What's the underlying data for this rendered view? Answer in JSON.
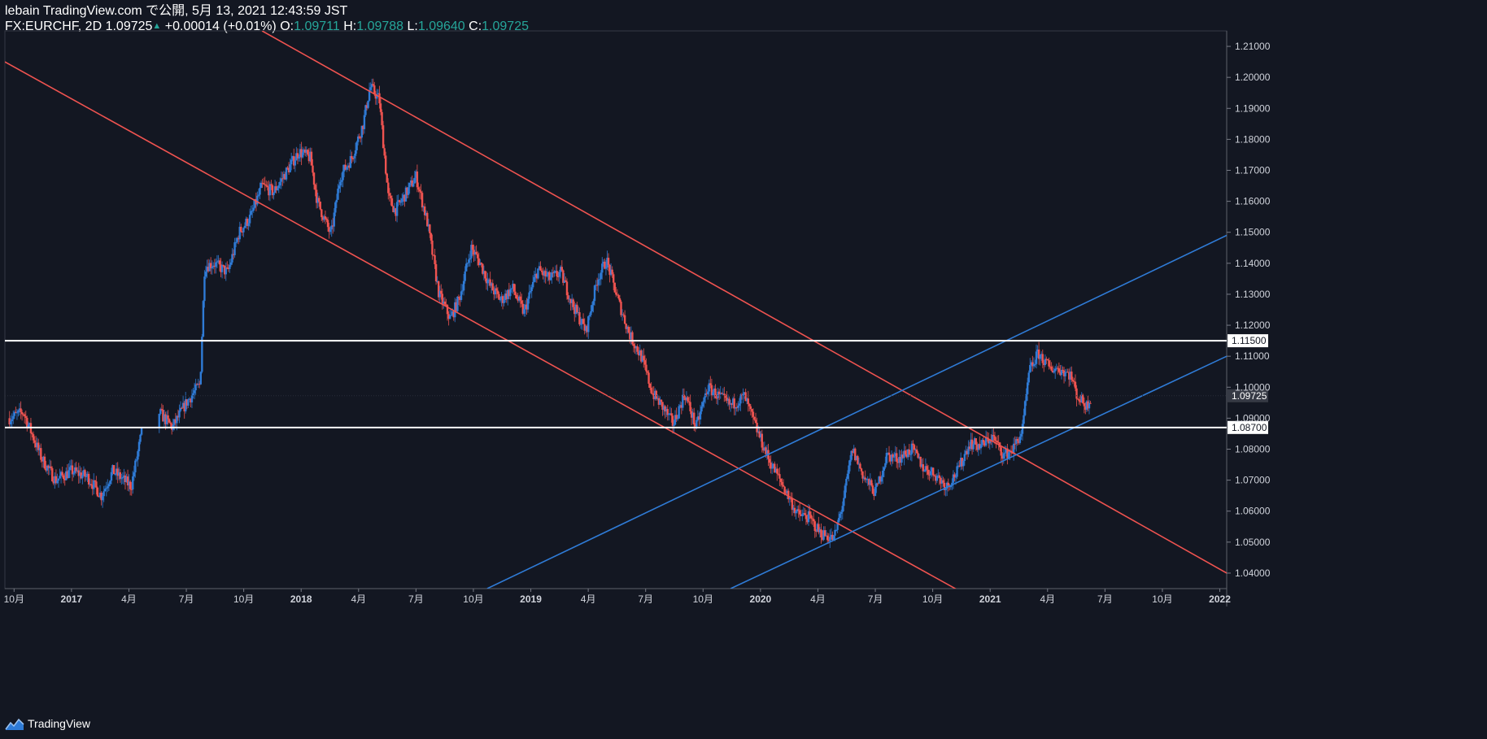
{
  "header": {
    "publisher_line": "lebain TradingView.com で公開, 5月 13, 2021 12:43:59 JST",
    "symbol": "FX:EURCHF, 2D",
    "price": "1.09725",
    "change": "+0.00014 (+0.01%)",
    "o_label": "O:",
    "o_value": "1.09711",
    "h_label": "H:",
    "h_value": "1.09788",
    "l_label": "L:",
    "l_value": "1.09640",
    "c_label": "C:",
    "c_value": "1.09725"
  },
  "footer": {
    "brand": "TradingView"
  },
  "colors": {
    "background": "#131722",
    "up": "#2f7bd6",
    "down": "#ef5350",
    "up_text": "#26a69a",
    "channel_down": "#ef5350",
    "channel_up": "#2f7bd6",
    "level": "#ffffff"
  },
  "chart_data": {
    "type": "candlestick",
    "symbol": "FX:EURCHF",
    "timeframe": "2D",
    "x_ticks": [
      {
        "t": 2016.75,
        "label": "10月"
      },
      {
        "t": 2017.0,
        "label": "2017"
      },
      {
        "t": 2017.25,
        "label": "4月"
      },
      {
        "t": 2017.5,
        "label": "7月"
      },
      {
        "t": 2017.75,
        "label": "10月"
      },
      {
        "t": 2018.0,
        "label": "2018"
      },
      {
        "t": 2018.25,
        "label": "4月"
      },
      {
        "t": 2018.5,
        "label": "7月"
      },
      {
        "t": 2018.75,
        "label": "10月"
      },
      {
        "t": 2019.0,
        "label": "2019"
      },
      {
        "t": 2019.25,
        "label": "4月"
      },
      {
        "t": 2019.5,
        "label": "7月"
      },
      {
        "t": 2019.75,
        "label": "10月"
      },
      {
        "t": 2020.0,
        "label": "2020"
      },
      {
        "t": 2020.25,
        "label": "4月"
      },
      {
        "t": 2020.5,
        "label": "7月"
      },
      {
        "t": 2020.75,
        "label": "10月"
      },
      {
        "t": 2021.0,
        "label": "2021"
      },
      {
        "t": 2021.25,
        "label": "4月"
      },
      {
        "t": 2021.5,
        "label": "7月"
      },
      {
        "t": 2021.75,
        "label": "10月"
      },
      {
        "t": 2022.0,
        "label": "2022"
      }
    ],
    "y_ticks": [
      1.04,
      1.05,
      1.06,
      1.07,
      1.08,
      1.09,
      1.1,
      1.11,
      1.12,
      1.13,
      1.14,
      1.15,
      1.16,
      1.17,
      1.18,
      1.19,
      1.2,
      1.21
    ],
    "y_tick_labels": [
      "1.04000",
      "1.05000",
      "1.06000",
      "1.07000",
      "1.08000",
      "1.09000",
      "1.10000",
      "1.11000",
      "1.12000",
      "1.13000",
      "1.14000",
      "1.15000",
      "1.16000",
      "1.17000",
      "1.18000",
      "1.19000",
      "1.20000",
      "1.21000"
    ],
    "ylim": [
      1.035,
      1.215
    ],
    "xlim": [
      2016.71,
      2022.03
    ],
    "price_path": [
      [
        2016.73,
        1.09
      ],
      [
        2016.79,
        1.092
      ],
      [
        2016.87,
        1.077
      ],
      [
        2016.93,
        1.07
      ],
      [
        2017.0,
        1.073
      ],
      [
        2017.07,
        1.071
      ],
      [
        2017.13,
        1.065
      ],
      [
        2017.18,
        1.073
      ],
      [
        2017.26,
        1.068
      ],
      [
        2017.31,
        1.087
      ],
      [
        2017.38,
        1.092
      ],
      [
        2017.44,
        1.087
      ],
      [
        2017.5,
        1.095
      ],
      [
        2017.56,
        1.101
      ],
      [
        2017.58,
        1.139
      ],
      [
        2017.62,
        1.14
      ],
      [
        2017.68,
        1.137
      ],
      [
        2017.73,
        1.15
      ],
      [
        2017.78,
        1.155
      ],
      [
        2017.83,
        1.165
      ],
      [
        2017.88,
        1.163
      ],
      [
        2017.94,
        1.17
      ],
      [
        2017.99,
        1.176
      ],
      [
        2018.04,
        1.174
      ],
      [
        2018.07,
        1.16
      ],
      [
        2018.13,
        1.149
      ],
      [
        2018.17,
        1.168
      ],
      [
        2018.22,
        1.174
      ],
      [
        2018.27,
        1.185
      ],
      [
        2018.3,
        1.197
      ],
      [
        2018.34,
        1.193
      ],
      [
        2018.38,
        1.161
      ],
      [
        2018.41,
        1.157
      ],
      [
        2018.46,
        1.163
      ],
      [
        2018.5,
        1.168
      ],
      [
        2018.55,
        1.153
      ],
      [
        2018.6,
        1.13
      ],
      [
        2018.65,
        1.122
      ],
      [
        2018.69,
        1.129
      ],
      [
        2018.74,
        1.145
      ],
      [
        2018.78,
        1.14
      ],
      [
        2018.82,
        1.133
      ],
      [
        2018.87,
        1.128
      ],
      [
        2018.92,
        1.132
      ],
      [
        2018.97,
        1.124
      ],
      [
        2019.03,
        1.138
      ],
      [
        2019.08,
        1.135
      ],
      [
        2019.13,
        1.137
      ],
      [
        2019.18,
        1.127
      ],
      [
        2019.24,
        1.118
      ],
      [
        2019.29,
        1.135
      ],
      [
        2019.33,
        1.141
      ],
      [
        2019.38,
        1.128
      ],
      [
        2019.43,
        1.117
      ],
      [
        2019.48,
        1.11
      ],
      [
        2019.53,
        1.098
      ],
      [
        2019.58,
        1.093
      ],
      [
        2019.62,
        1.088
      ],
      [
        2019.67,
        1.098
      ],
      [
        2019.72,
        1.087
      ],
      [
        2019.77,
        1.1
      ],
      [
        2019.82,
        1.097
      ],
      [
        2019.87,
        1.094
      ],
      [
        2019.93,
        1.097
      ],
      [
        2019.98,
        1.087
      ],
      [
        2020.04,
        1.076
      ],
      [
        2020.1,
        1.068
      ],
      [
        2020.16,
        1.059
      ],
      [
        2020.21,
        1.058
      ],
      [
        2020.26,
        1.053
      ],
      [
        2020.32,
        1.051
      ],
      [
        2020.36,
        1.063
      ],
      [
        2020.4,
        1.08
      ],
      [
        2020.45,
        1.071
      ],
      [
        2020.5,
        1.066
      ],
      [
        2020.55,
        1.078
      ],
      [
        2020.6,
        1.077
      ],
      [
        2020.66,
        1.08
      ],
      [
        2020.71,
        1.074
      ],
      [
        2020.76,
        1.072
      ],
      [
        2020.81,
        1.068
      ],
      [
        2020.86,
        1.073
      ],
      [
        2020.91,
        1.082
      ],
      [
        2020.96,
        1.081
      ],
      [
        2021.01,
        1.084
      ],
      [
        2021.06,
        1.078
      ],
      [
        2021.1,
        1.08
      ],
      [
        2021.14,
        1.086
      ],
      [
        2021.17,
        1.105
      ],
      [
        2021.21,
        1.111
      ],
      [
        2021.26,
        1.106
      ],
      [
        2021.3,
        1.106
      ],
      [
        2021.35,
        1.104
      ],
      [
        2021.38,
        1.097
      ],
      [
        2021.42,
        1.094
      ],
      [
        2021.44,
        1.0972
      ]
    ],
    "trend_lines": [
      {
        "name": "channel-down-upper",
        "color": "red",
        "p1": [
          2017.83,
          1.215
        ],
        "p2": [
          2021.12,
          1.078
        ]
      },
      {
        "name": "channel-down-lower",
        "color": "red",
        "p1": [
          2016.71,
          1.205
        ],
        "p2": [
          2020.97,
          1.03
        ]
      },
      {
        "name": "channel-down-upper-ext",
        "color": "red",
        "p1": [
          2021.12,
          1.078
        ],
        "p2": [
          2022.03,
          1.04
        ]
      },
      {
        "name": "channel-up-upper",
        "color": "blue",
        "p1": [
          2018.81,
          1.035
        ],
        "p2": [
          2022.03,
          1.149
        ]
      },
      {
        "name": "channel-up-lower",
        "color": "blue",
        "p1": [
          2019.87,
          1.035
        ],
        "p2": [
          2022.03,
          1.11
        ]
      }
    ],
    "levels": [
      {
        "value": 1.115,
        "label": "1.11500"
      },
      {
        "value": 1.087,
        "label": "1.08700"
      }
    ],
    "last_price": {
      "value": 1.09725,
      "label": "1.09725"
    }
  }
}
